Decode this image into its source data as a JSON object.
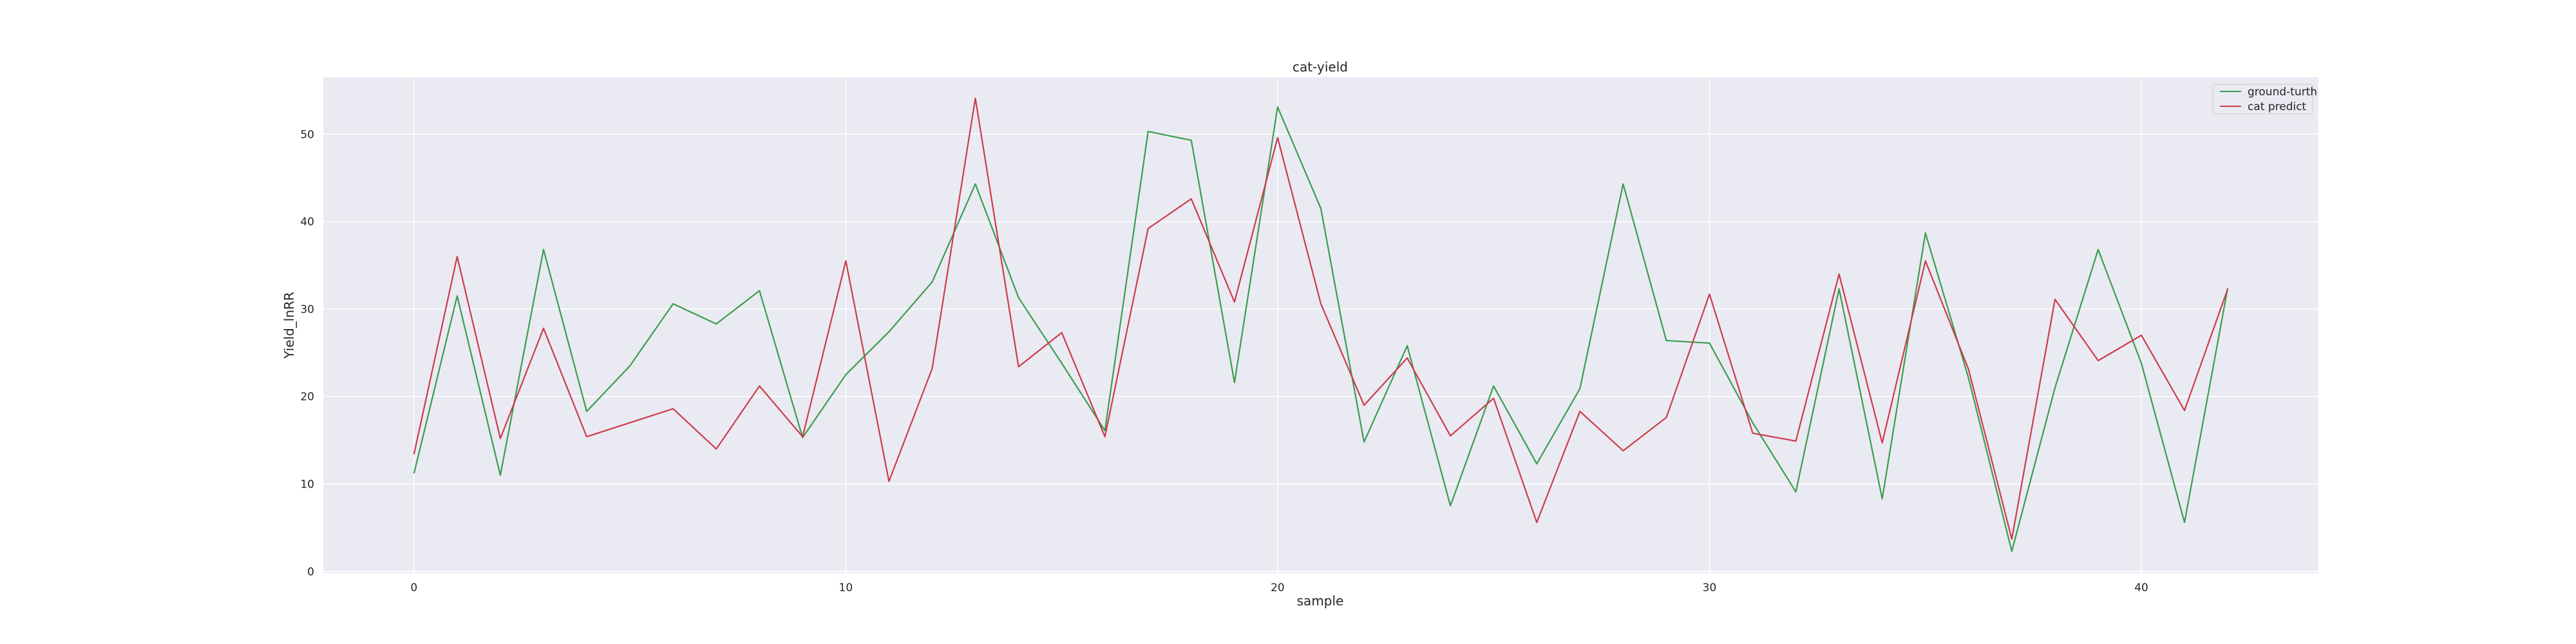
{
  "chart_data": {
    "type": "line",
    "title": "cat-yield",
    "xlabel": "sample",
    "ylabel": "Yield_lnRR",
    "xlim": [
      -2.1,
      44.1
    ],
    "ylim": [
      -0.2,
      56.5
    ],
    "xticks": [
      0,
      10,
      20,
      30,
      40
    ],
    "yticks": [
      0,
      10,
      20,
      30,
      40,
      50
    ],
    "grid": true,
    "legend_position": "top-right",
    "background": "#eaeaf2",
    "x": [
      0,
      1,
      2,
      3,
      4,
      5,
      6,
      7,
      8,
      9,
      10,
      11,
      12,
      13,
      14,
      15,
      16,
      17,
      18,
      19,
      20,
      21,
      22,
      23,
      24,
      25,
      26,
      27,
      28,
      29,
      30,
      31,
      32,
      33,
      34,
      35,
      36,
      37,
      38,
      39,
      40,
      41,
      42
    ],
    "series": [
      {
        "name": "ground-turth",
        "color": "#3a9d4f",
        "values": [
          11.2,
          31.5,
          11.0,
          36.8,
          18.3,
          23.5,
          30.6,
          28.3,
          32.1,
          15.3,
          22.5,
          27.4,
          33.1,
          44.3,
          31.3,
          23.8,
          16.1,
          50.3,
          49.3,
          21.6,
          53.1,
          41.5,
          14.8,
          25.8,
          7.5,
          21.2,
          12.3,
          20.9,
          44.3,
          26.4,
          26.1,
          17.0,
          9.1,
          32.3,
          8.3,
          38.7,
          22.1,
          2.3,
          21.0,
          36.8,
          23.8,
          5.6,
          32.4
        ]
      },
      {
        "name": "cat predict",
        "color": "#cc3b4c",
        "values": [
          13.4,
          36.0,
          15.2,
          27.8,
          15.4,
          17.0,
          18.6,
          14.0,
          21.2,
          15.4,
          35.5,
          10.3,
          23.2,
          54.1,
          23.4,
          27.3,
          15.4,
          39.2,
          42.6,
          30.8,
          49.6,
          30.6,
          19.0,
          24.4,
          15.5,
          19.8,
          5.6,
          18.3,
          13.8,
          17.6,
          31.7,
          15.8,
          14.9,
          34.0,
          14.7,
          35.5,
          23.1,
          3.7,
          31.1,
          24.1,
          27.0,
          18.4,
          32.3
        ]
      }
    ]
  }
}
